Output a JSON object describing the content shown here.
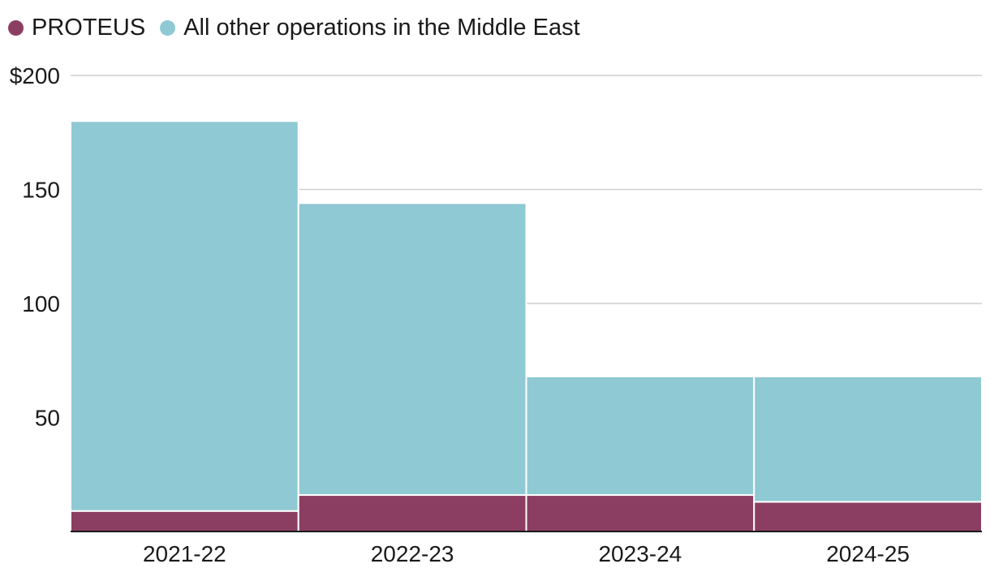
{
  "chart_data": {
    "type": "bar",
    "stacked": true,
    "categories": [
      "2021-22",
      "2022-23",
      "2023-24",
      "2024-25"
    ],
    "series": [
      {
        "name": "PROTEUS",
        "color": "#8b3d62",
        "values": [
          9,
          16,
          16,
          13
        ]
      },
      {
        "name": "All other operations in the Middle East",
        "color": "#8fc9d3",
        "values": [
          171,
          128,
          52,
          55
        ]
      }
    ],
    "ylim": [
      0,
      200
    ],
    "yticks": [
      50,
      100,
      150,
      200
    ],
    "ytick_labels": [
      "50",
      "100",
      "150",
      "$200"
    ],
    "grid": true,
    "legend": "top-left",
    "title": "",
    "xlabel": "",
    "ylabel": ""
  }
}
